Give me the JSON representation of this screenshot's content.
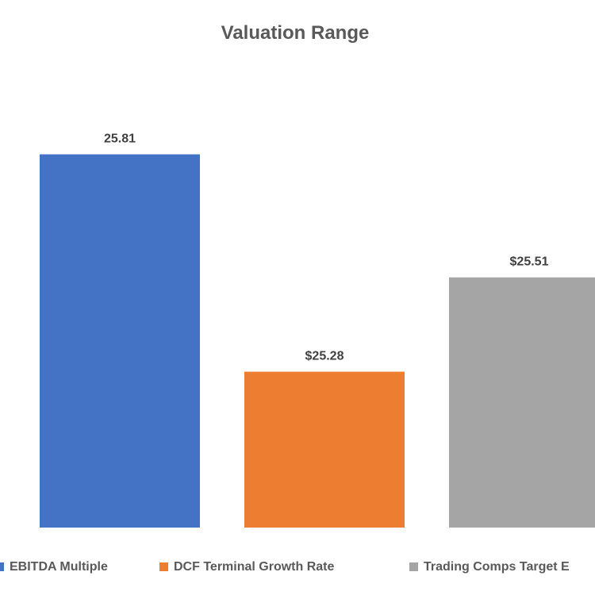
{
  "chart_data": {
    "type": "bar",
    "title": "Valuation Range",
    "categories": [
      "EBITDA Multiple",
      "DCF Terminal Growth Rate",
      "Trading Comps Target E"
    ],
    "values": [
      25.81,
      25.28,
      25.51
    ],
    "data_labels": [
      "25.81",
      "$25.28",
      "$25.51"
    ],
    "colors": [
      "#4472C4",
      "#ED7D31",
      "#A5A5A5"
    ],
    "ylim": [
      24.9,
      25.9
    ],
    "xlabel": "",
    "ylabel": "",
    "grid": false,
    "legend": "bottom"
  }
}
